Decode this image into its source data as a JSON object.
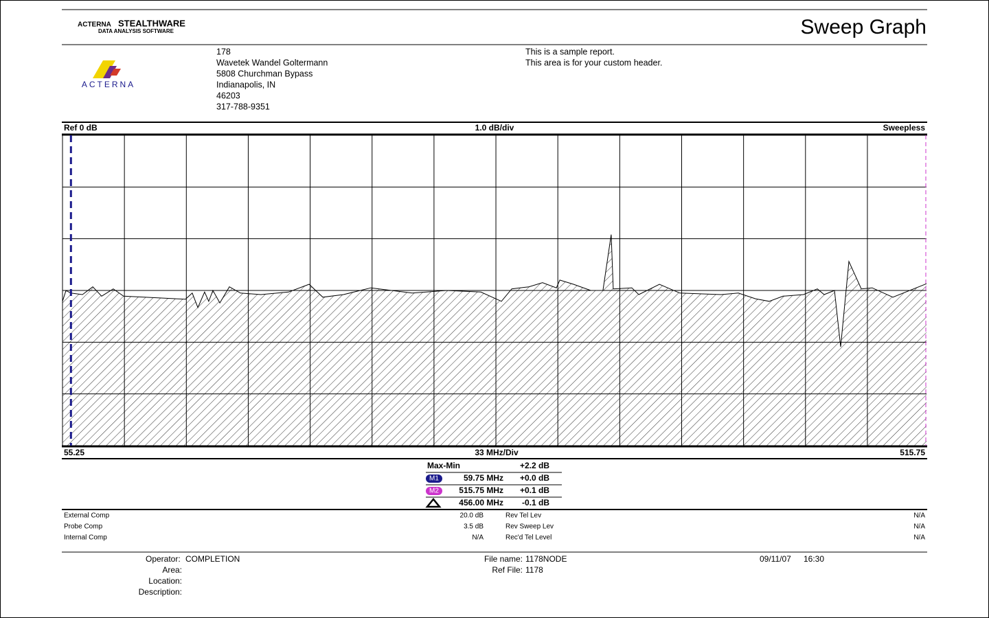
{
  "header": {
    "brand": "ACTERNA",
    "product": "STEALTHWARE",
    "tagline": "DATA ANALYSIS SOFTWARE",
    "logo_text": "ACTERNA",
    "title": "Sweep Graph",
    "address": [
      "178",
      "Wavetek Wandel Goltermann",
      "5808 Churchman Bypass",
      "Indianapolis, IN",
      "46203",
      "317-788-9351"
    ],
    "custom": [
      "This is a sample report.",
      "This area is for your custom header."
    ]
  },
  "chart_data": {
    "type": "line",
    "ref_label": "Ref 0 dB",
    "scale_label": "1.0 dB/div",
    "mode_label": "Sweepless",
    "x_span_label": "33 MHz/Div",
    "xlim": [
      55.25,
      515.75
    ],
    "ylim": [
      -3,
      3
    ],
    "yticks": [
      -3,
      -2,
      -1,
      0,
      1,
      2,
      3
    ],
    "xticks": [
      55.25,
      88.25,
      121.25,
      154.25,
      187.25,
      220.25,
      253.25,
      286.25,
      319.25,
      352.25,
      385.25,
      418.25,
      451.25,
      484.25
    ],
    "grid": true,
    "color": "#000000",
    "x": [
      55.25,
      57.1,
      59.6,
      65.9,
      71.4,
      76.1,
      82.3,
      87.8,
      120.8,
      124.4,
      127.4,
      131.0,
      133.2,
      135.4,
      139.1,
      144.2,
      150.1,
      161.0,
      175.7,
      186.7,
      194.0,
      205.0,
      219.6,
      241.6,
      259.9,
      278.2,
      289.2,
      294.7,
      303.8,
      311.1,
      318.5,
      320.3,
      327.6,
      336.8,
      343.3,
      347.7,
      348.8,
      358.7,
      362.4,
      373.4,
      384.3,
      406.3,
      415.5,
      424.6,
      431.9,
      439.3,
      450.2,
      457.6,
      461.2,
      466.7,
      470.0,
      474.4,
      481.0,
      486.8,
      497.8,
      515.75
    ],
    "values": [
      -0.21,
      0,
      -0.05,
      -0.08,
      0.07,
      -0.11,
      0.03,
      -0.11,
      -0.17,
      -0.05,
      -0.33,
      -0.03,
      -0.21,
      0,
      -0.24,
      0.07,
      -0.05,
      -0.08,
      -0.03,
      0.12,
      -0.13,
      -0.08,
      0.05,
      -0.05,
      0,
      -0.03,
      -0.21,
      0.03,
      0.07,
      0.15,
      0.05,
      0.2,
      0.12,
      0,
      0,
      1.08,
      0.03,
      0.05,
      -0.08,
      0.12,
      -0.05,
      -0.08,
      -0.05,
      -0.16,
      -0.21,
      -0.11,
      -0.08,
      0.03,
      -0.08,
      0,
      -1.09,
      0.56,
      0.03,
      0.05,
      -0.13,
      0.13
    ],
    "markers": [
      {
        "name": "M1",
        "x": 59.75,
        "color": "#1a1a8c"
      },
      {
        "name": "M2",
        "x": 515.75,
        "color": "#cc33cc"
      }
    ]
  },
  "measurements": {
    "max_min_label": "Max-Min",
    "max_min": "+2.2 dB",
    "rows": [
      {
        "freq": "59.75 MHz",
        "level": "+0.0 dB"
      },
      {
        "freq": "515.75 MHz",
        "level": "+0.1 dB"
      },
      {
        "freq": "456.00 MHz",
        "level": "-0.1 dB"
      }
    ]
  },
  "compensation": {
    "rows": [
      [
        "External Comp",
        "20.0 dB",
        "Rev Tel Lev",
        "N/A"
      ],
      [
        "Probe Comp",
        "3.5 dB",
        "Rev Sweep Lev",
        "N/A"
      ],
      [
        "Internal Comp",
        "N/A",
        "Rec'd Tel Level",
        "N/A"
      ]
    ]
  },
  "footer": {
    "operator_label": "Operator:",
    "operator": "COMPLETION",
    "area_label": "Area:",
    "location_label": "Location:",
    "description_label": "Description:",
    "file_label": "File name:",
    "file": "1178NODE",
    "ref_label": "Ref File:",
    "ref": "1178",
    "date": "09/11/07",
    "time": "16:30"
  }
}
